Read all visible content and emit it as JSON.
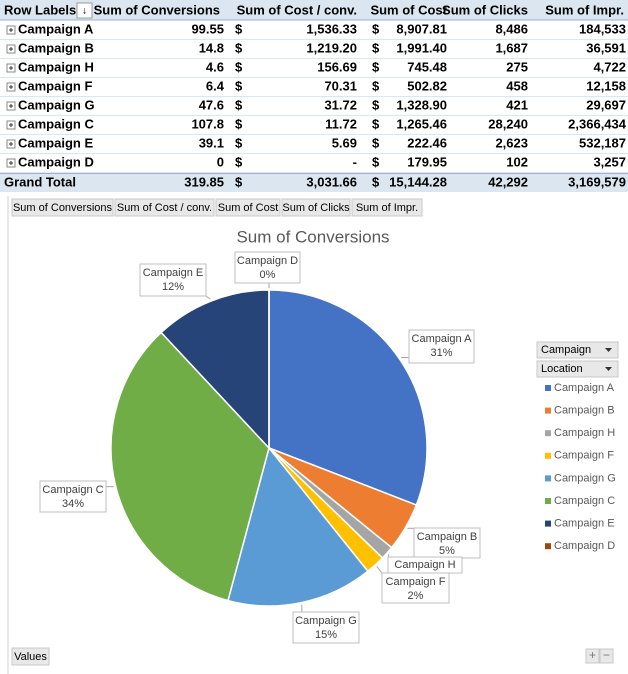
{
  "table": {
    "headers": [
      "Row Labels",
      "Sum of Conversions",
      "Sum of Cost / conv.",
      "Sum of Cost",
      "Sum of Clicks",
      "Sum of Impr."
    ],
    "currency": "$",
    "rows": [
      [
        "Campaign A",
        "99.55",
        "1,536.33",
        "8,907.81",
        "8,486",
        "184,533"
      ],
      [
        "Campaign B",
        "14.8",
        "1,219.20",
        "1,991.40",
        "1,687",
        "36,591"
      ],
      [
        "Campaign H",
        "4.6",
        "156.69",
        "745.48",
        "275",
        "4,722"
      ],
      [
        "Campaign F",
        "6.4",
        "70.31",
        "502.82",
        "458",
        "12,158"
      ],
      [
        "Campaign G",
        "47.6",
        "31.72",
        "1,328.90",
        "421",
        "29,697"
      ],
      [
        "Campaign C",
        "107.8",
        "11.72",
        "1,265.46",
        "28,240",
        "2,366,434"
      ],
      [
        "Campaign E",
        "39.1",
        "5.69",
        "222.46",
        "2,623",
        "532,187"
      ],
      [
        "Campaign D",
        "0",
        "-",
        "179.95",
        "102",
        "3,257"
      ]
    ],
    "total": [
      "Grand Total",
      "319.85",
      "3,031.66",
      "15,144.28",
      "42,292",
      "3,169,579"
    ]
  },
  "chart_data": {
    "type": "pie",
    "title": "Sum of Conversions",
    "categories": [
      "Campaign A",
      "Campaign B",
      "Campaign H",
      "Campaign F",
      "Campaign G",
      "Campaign C",
      "Campaign E",
      "Campaign D"
    ],
    "values": [
      31,
      5,
      1.4,
      2,
      15,
      34,
      12,
      0
    ],
    "value_labels": [
      "31%",
      "5%",
      null,
      "2%",
      "15%",
      "34%",
      "12%",
      "0%"
    ],
    "colors": [
      "#4472c4",
      "#ed7d31",
      "#a5a5a5",
      "#ffc000",
      "#5b9bd5",
      "#70ad47",
      "#264478",
      "#9e480e"
    ]
  },
  "chart_controls": {
    "legend_fields": [
      "Campaign",
      "Location"
    ],
    "axis_field": "Values",
    "zoom": [
      "+",
      "−"
    ]
  }
}
